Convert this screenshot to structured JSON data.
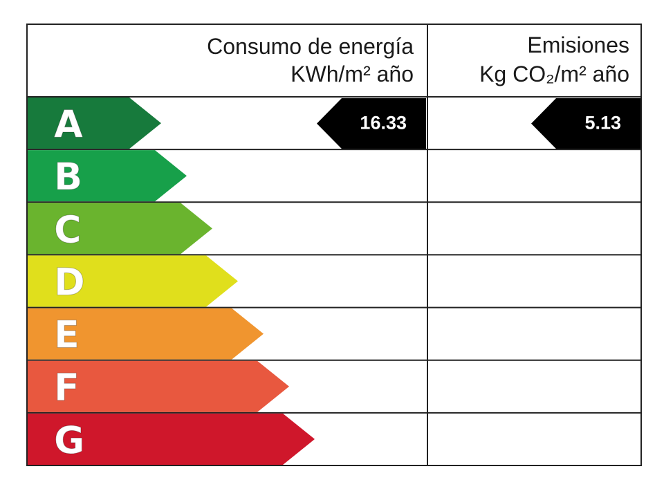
{
  "header": {
    "consumption": [
      "Consumo de energía",
      "KWh/m² año"
    ],
    "emissions": [
      "Emisiones",
      "Kg CO₂/m² año"
    ]
  },
  "classes": [
    {
      "letter": "A",
      "color": "#177a3c"
    },
    {
      "letter": "B",
      "color": "#17a04a"
    },
    {
      "letter": "C",
      "color": "#6ab42e"
    },
    {
      "letter": "D",
      "color": "#e0df1c"
    },
    {
      "letter": "E",
      "color": "#f0952f"
    },
    {
      "letter": "F",
      "color": "#e8583f"
    },
    {
      "letter": "G",
      "color": "#cf172b"
    }
  ],
  "consumption": {
    "class": "A",
    "value": 16.33
  },
  "emissions": {
    "class": "A",
    "value": 5.13
  }
}
